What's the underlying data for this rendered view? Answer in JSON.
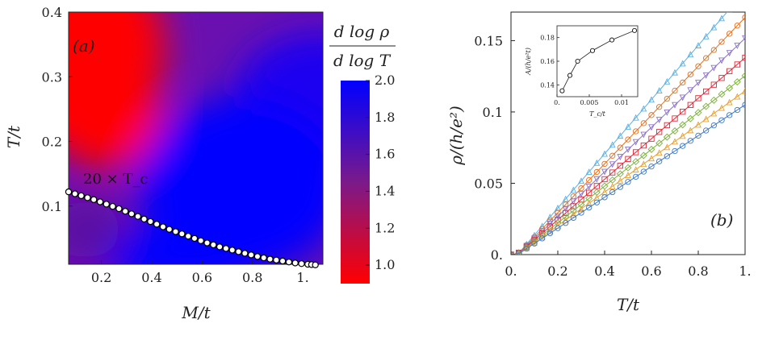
{
  "chart_data": [
    {
      "type": "heatmap",
      "panel_label": "(a)",
      "xlabel": "M/t",
      "ylabel": "T/t",
      "xlim": [
        0.07,
        1.08
      ],
      "ylim": [
        0.01,
        0.4
      ],
      "xticks": [
        0.2,
        0.4,
        0.6,
        0.8,
        1.0
      ],
      "xtick_labels": [
        "0.2",
        "0.4",
        "0.6",
        "0.8",
        "1."
      ],
      "yticks": [
        0.1,
        0.2,
        0.3,
        0.4
      ],
      "ytick_labels": [
        "0.1",
        "0.2",
        "0.3",
        "0.4"
      ],
      "colorbar": {
        "label_num": "d log ρ",
        "label_den": "d log T",
        "range": [
          0.9,
          2.0
        ],
        "ticks": [
          1.0,
          1.2,
          1.4,
          1.6,
          1.8,
          2.0
        ],
        "tick_labels": [
          "1.0",
          "1.2",
          "1.4",
          "1.6",
          "1.8",
          "2.0"
        ],
        "low_color": "#ff0000",
        "high_color": "#0000ff"
      },
      "annotation": "20 × T_c",
      "curve_name": "20 × T_c",
      "curve": {
        "x": [
          0.07,
          0.12,
          0.17,
          0.22,
          0.27,
          0.32,
          0.37,
          0.42,
          0.47,
          0.52,
          0.57,
          0.62,
          0.67,
          0.72,
          0.77,
          0.82,
          0.87,
          0.92,
          0.97,
          1.02,
          1.05
        ],
        "y": [
          0.122,
          0.116,
          0.11,
          0.103,
          0.096,
          0.088,
          0.08,
          0.072,
          0.064,
          0.057,
          0.05,
          0.043,
          0.037,
          0.032,
          0.027,
          0.022,
          0.018,
          0.015,
          0.012,
          0.01,
          0.009
        ]
      }
    },
    {
      "type": "line",
      "panel_label": "(b)",
      "xlabel": "T/t",
      "ylabel": "ρ/(h/e²)",
      "xlim": [
        0,
        1
      ],
      "ylim": [
        0,
        0.17
      ],
      "xticks": [
        0,
        0.2,
        0.4,
        0.6,
        0.8,
        1.0
      ],
      "xtick_labels": [
        "0.",
        "0.2",
        "0.4",
        "0.6",
        "0.8",
        "1."
      ],
      "yticks": [
        0,
        0.05,
        0.1,
        0.15
      ],
      "ytick_labels": [
        "0.",
        "0.05",
        "0.1",
        "0.15"
      ],
      "series": [
        {
          "color": "#5bb0e6",
          "marker": "triangle-up",
          "slope": 0.19
        },
        {
          "color": "#e07020",
          "marker": "circle",
          "slope": 0.171
        },
        {
          "color": "#8a72c8",
          "marker": "triangle-down",
          "slope": 0.156
        },
        {
          "color": "#e02a3a",
          "marker": "square",
          "slope": 0.142
        },
        {
          "color": "#7ab03a",
          "marker": "diamond",
          "slope": 0.129
        },
        {
          "color": "#e8a030",
          "marker": "triangle-up",
          "slope": 0.118
        },
        {
          "color": "#3c78c8",
          "marker": "circle",
          "slope": 0.108
        }
      ],
      "inset": {
        "xlabel": "T_c/t",
        "ylabel": "A/(h/e²t)",
        "xlim": [
          0,
          0.0125
        ],
        "ylim": [
          0.13,
          0.19
        ],
        "xticks": [
          0.0,
          0.005,
          0.01
        ],
        "xtick_labels": [
          "0.",
          "0.005",
          "0.01"
        ],
        "yticks": [
          0.14,
          0.16,
          0.18
        ],
        "ytick_labels": [
          "0.14",
          "0.16",
          "0.18"
        ],
        "x": [
          0.0008,
          0.002,
          0.0032,
          0.0055,
          0.0085,
          0.012
        ],
        "y": [
          0.135,
          0.148,
          0.16,
          0.169,
          0.178,
          0.186
        ]
      }
    }
  ]
}
